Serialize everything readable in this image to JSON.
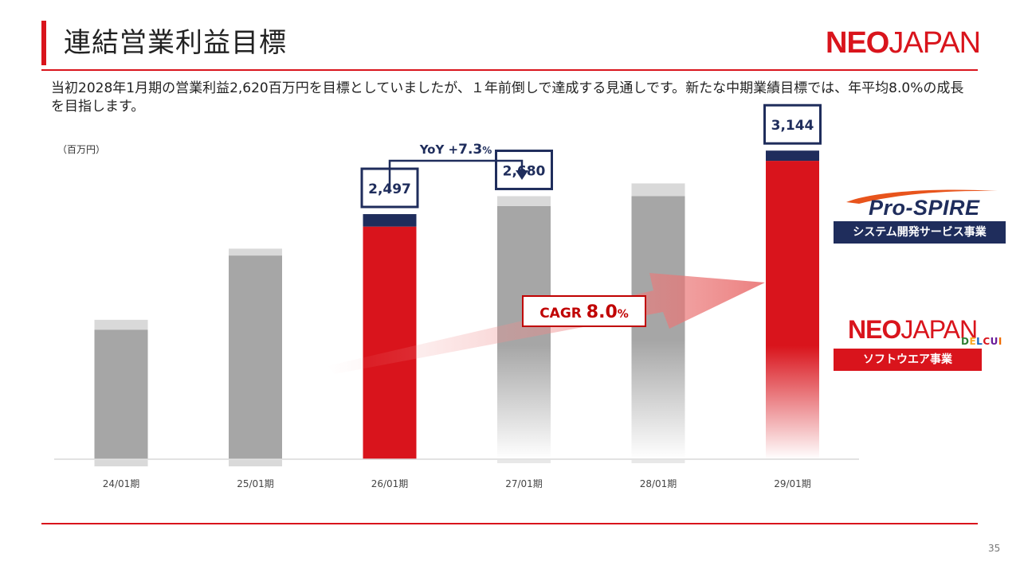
{
  "slide": {
    "title": "連結営業利益目標",
    "logo_bold": "NEO",
    "logo_regular": "JAPAN",
    "description": "当初2028年1月期の営業利益2,620百万円を目標としていましたが、１年前倒しで達成する見通しです。新たな中期業績目標では、年平均8.0%の成長を目指します。",
    "page_number": "35"
  },
  "legend": {
    "prospire_logo": "Pro-SPIRE",
    "prospire_label": "システム開発サービス事業",
    "neojapan_logo_bold": "NEO",
    "neojapan_logo_regular": "JAPAN",
    "delcui_logo": "DELCUI",
    "neojapan_label": "ソフトウエア事業"
  },
  "colors": {
    "accent_red": "#d9141c",
    "navy": "#1f2d5c",
    "bar_gray": "#a6a6a6",
    "bar_gray_cap": "#d9d9d9"
  },
  "chart_data": {
    "type": "bar",
    "unit_label": "（百万円）",
    "categories": [
      "24/01期",
      "25/01期",
      "26/01期",
      "27/01期",
      "28/01期",
      "29/01期"
    ],
    "series": [
      {
        "name": "ソフトウエア事業",
        "values": [
          1320,
          2075,
          2370,
          2580,
          2680,
          3040
        ]
      },
      {
        "name": "システム開発サービス事業",
        "values": [
          100,
          70,
          127,
          100,
          130,
          104
        ]
      }
    ],
    "totals": [
      1420,
      2145,
      2497,
      2680,
      2810,
      3144
    ],
    "labeled_totals": {
      "2": "2,497",
      "3": "2,680",
      "5": "3,144"
    },
    "highlighted": [
      2,
      5
    ],
    "ylim": [
      0,
      3300
    ],
    "annotations": {
      "yoy_prefix": "YoY +",
      "yoy_value": "7.3",
      "yoy_suffix": "%",
      "cagr_prefix": "CAGR ",
      "cagr_value": "8.0",
      "cagr_suffix": "%"
    }
  }
}
